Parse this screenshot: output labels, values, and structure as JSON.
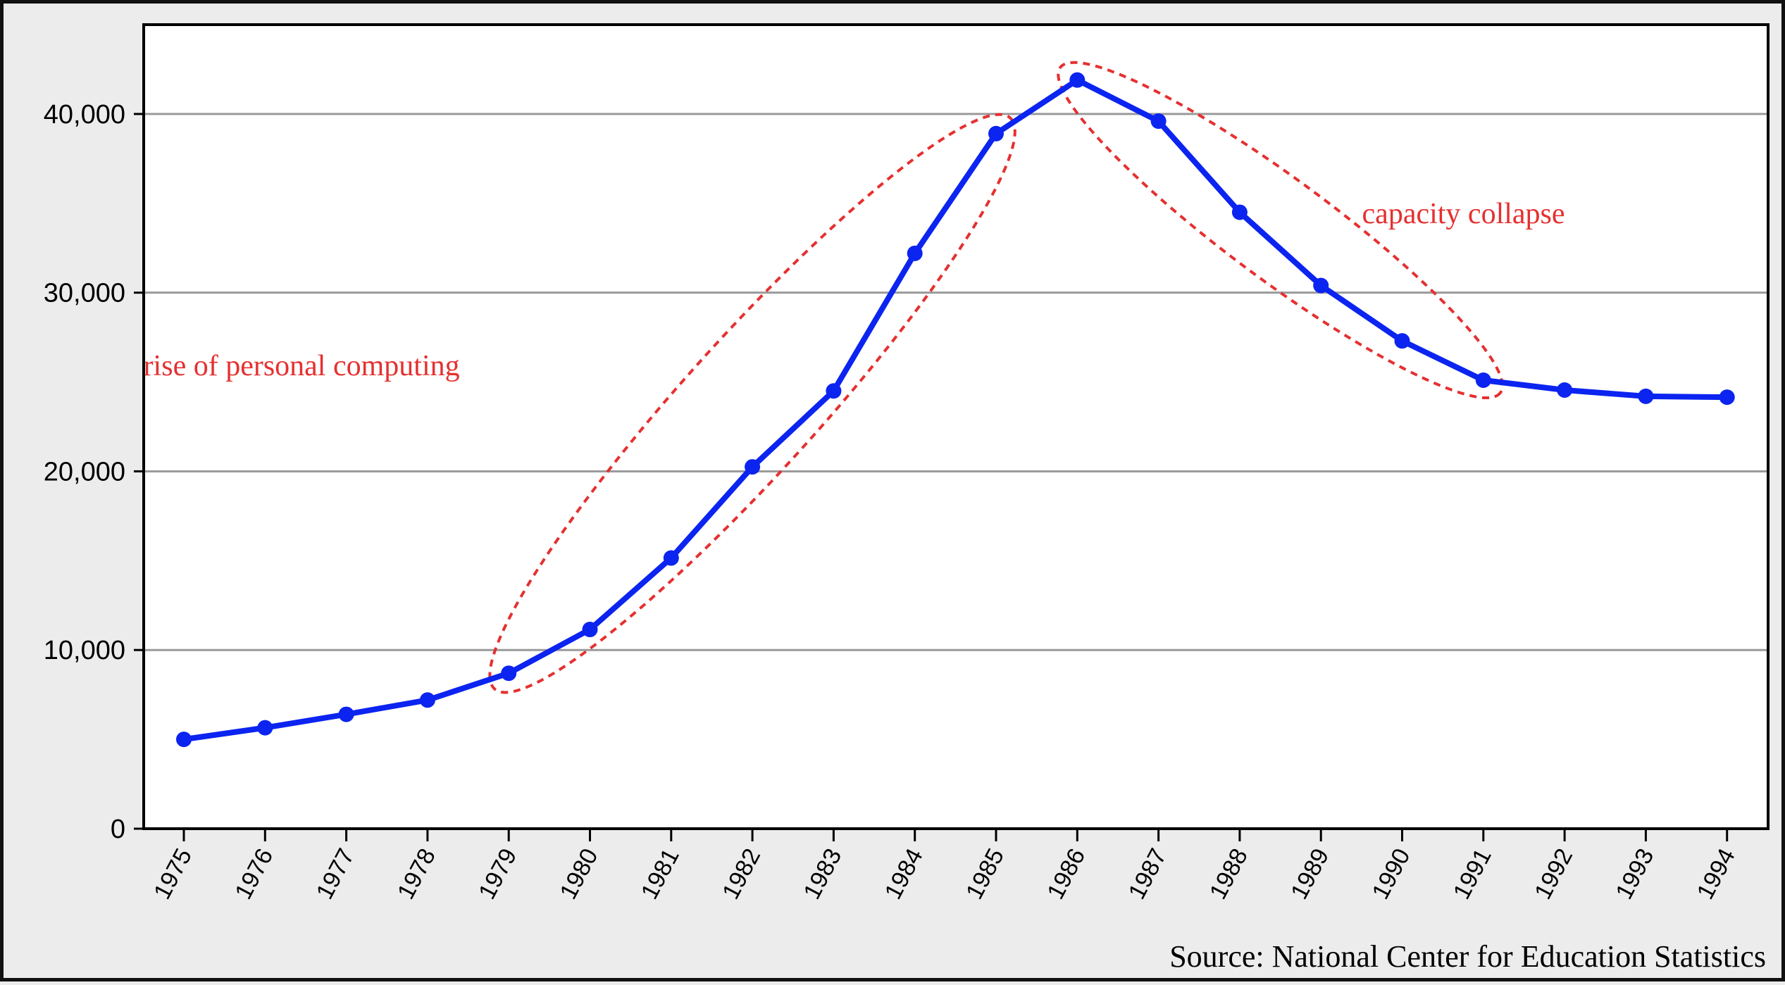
{
  "chart_data": {
    "type": "line",
    "title": "",
    "xlabel": "",
    "ylabel": "",
    "x": [
      "1975",
      "1976",
      "1977",
      "1978",
      "1979",
      "1980",
      "1981",
      "1982",
      "1983",
      "1984",
      "1985",
      "1986",
      "1987",
      "1988",
      "1989",
      "1990",
      "1991",
      "1992",
      "1993",
      "1994"
    ],
    "series": [
      {
        "values": [
          5000,
          5650,
          6400,
          7200,
          8700,
          11150,
          15150,
          20250,
          24500,
          32200,
          38900,
          41900,
          39600,
          34500,
          30400,
          27300,
          25100,
          24550,
          24200,
          24150
        ]
      }
    ],
    "ylim": [
      0,
      45000
    ],
    "yticks": [
      0,
      10000,
      20000,
      30000,
      40000
    ],
    "ytick_labels": [
      "0",
      "10,000",
      "20,000",
      "30,000",
      "40,000"
    ],
    "grid": "horizontal",
    "annotations": [
      {
        "text": "rise of personal computing",
        "highlights": [
          "1979",
          "1985"
        ]
      },
      {
        "text": "capacity collapse",
        "highlights": [
          "1986",
          "1991"
        ]
      }
    ],
    "source": "Source: National Center for Education Statistics",
    "colors": {
      "line": "#0b24f0",
      "annotation": "#e53030",
      "grid": "#9a9a9a",
      "plot_bg": "#ffffff",
      "page_bg": "#ececec"
    }
  }
}
